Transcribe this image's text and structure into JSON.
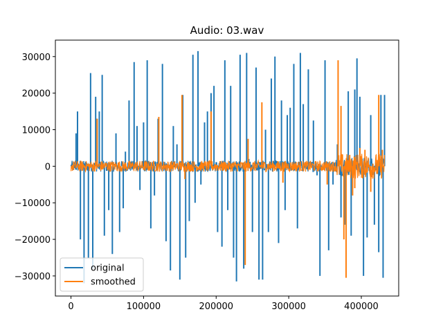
{
  "chart_data": {
    "type": "line",
    "title": "Audio: 03.wav",
    "xlabel": "",
    "ylabel": "",
    "xlim": [
      -21500,
      451500
    ],
    "ylim": [
      -35500,
      34500
    ],
    "x_ticks": [
      0,
      100000,
      200000,
      300000,
      400000
    ],
    "x_tick_labels": [
      "0",
      "100000",
      "200000",
      "300000",
      "400000"
    ],
    "y_ticks": [
      -30000,
      -20000,
      -10000,
      0,
      10000,
      20000,
      30000
    ],
    "y_tick_labels": [
      "−30000",
      "−20000",
      "−10000",
      "0",
      "10000",
      "20000",
      "30000"
    ],
    "grid": false,
    "legend_position": "lower-left",
    "series": [
      {
        "name": "original",
        "color": "#1f77b4",
        "x_start": 0,
        "x_end": 432000,
        "baseline_amplitude": 1500,
        "spikes": [
          [
            7000,
            9000
          ],
          [
            9000,
            15000
          ],
          [
            13000,
            -20000
          ],
          [
            18000,
            -32000
          ],
          [
            24000,
            -25000
          ],
          [
            27000,
            25500
          ],
          [
            30000,
            -28000
          ],
          [
            34000,
            19000
          ],
          [
            36000,
            13000
          ],
          [
            39000,
            15000
          ],
          [
            43000,
            25000
          ],
          [
            46000,
            -19000
          ],
          [
            52000,
            -12000
          ],
          [
            57000,
            -24000
          ],
          [
            62000,
            9000
          ],
          [
            67000,
            -18000
          ],
          [
            72000,
            -11500
          ],
          [
            75000,
            4000
          ],
          [
            80000,
            18000
          ],
          [
            87000,
            28500
          ],
          [
            91000,
            11000
          ],
          [
            95000,
            -6500
          ],
          [
            100000,
            12000
          ],
          [
            105000,
            29000
          ],
          [
            110000,
            -17000
          ],
          [
            115000,
            -8000
          ],
          [
            120000,
            13000
          ],
          [
            126000,
            28000
          ],
          [
            131000,
            -20500
          ],
          [
            137000,
            -28500
          ],
          [
            141000,
            11000
          ],
          [
            146000,
            6000
          ],
          [
            150000,
            -31000
          ],
          [
            154000,
            19500
          ],
          [
            158000,
            -25000
          ],
          [
            163000,
            -15000
          ],
          [
            168000,
            30500
          ],
          [
            171000,
            -10000
          ],
          [
            175000,
            31500
          ],
          [
            179000,
            -5000
          ],
          [
            184000,
            12000
          ],
          [
            188000,
            15000
          ],
          [
            193000,
            20000
          ],
          [
            197000,
            22000
          ],
          [
            202000,
            -18000
          ],
          [
            208000,
            -22000
          ],
          [
            212000,
            29000
          ],
          [
            216000,
            -12000
          ],
          [
            220000,
            22000
          ],
          [
            224000,
            -25000
          ],
          [
            228000,
            -31500
          ],
          [
            233000,
            30500
          ],
          [
            238000,
            -28000
          ],
          [
            242000,
            31000
          ],
          [
            245000,
            2000
          ],
          [
            250000,
            -18000
          ],
          [
            255000,
            27000
          ],
          [
            259000,
            -31000
          ],
          [
            264000,
            -31000
          ],
          [
            268000,
            10000
          ],
          [
            272000,
            -18000
          ],
          [
            276000,
            24000
          ],
          [
            281000,
            30000
          ],
          [
            286000,
            -21000
          ],
          [
            290000,
            18000
          ],
          [
            295000,
            -12000
          ],
          [
            298000,
            14000
          ],
          [
            302000,
            16000
          ],
          [
            307000,
            28000
          ],
          [
            312000,
            -17000
          ],
          [
            316000,
            31000
          ],
          [
            320000,
            17000
          ],
          [
            327000,
            26500
          ],
          [
            334000,
            12500
          ],
          [
            339000,
            -2500
          ],
          [
            343000,
            -30000
          ],
          [
            350000,
            29000
          ],
          [
            355000,
            -23000
          ],
          [
            361000,
            -5000
          ],
          [
            367000,
            6000
          ],
          [
            372000,
            -14000
          ],
          [
            377000,
            -16000
          ],
          [
            382000,
            20500
          ],
          [
            386000,
            -19000
          ],
          [
            391000,
            21000
          ],
          [
            394000,
            29500
          ],
          [
            398000,
            19000
          ],
          [
            403000,
            -30000
          ],
          [
            408000,
            -19500
          ],
          [
            413000,
            14000
          ],
          [
            418000,
            -16000
          ],
          [
            424000,
            -23500
          ],
          [
            427000,
            19500
          ],
          [
            430000,
            -30500
          ],
          [
            432000,
            19500
          ]
        ]
      },
      {
        "name": "smoothed",
        "color": "#ff7f0e",
        "x_start": 0,
        "x_end": 432000,
        "baseline_amplitude": 1500,
        "spikes": [
          [
            36000,
            13000
          ],
          [
            121000,
            13500
          ],
          [
            153000,
            19500
          ],
          [
            157000,
            -3500
          ],
          [
            193000,
            15000
          ],
          [
            240000,
            -27000
          ],
          [
            244000,
            7500
          ],
          [
            263000,
            17500
          ],
          [
            292000,
            -4500
          ],
          [
            353000,
            -5000
          ],
          [
            368000,
            29000
          ],
          [
            372000,
            16500
          ],
          [
            376000,
            -20000
          ],
          [
            379000,
            -30500
          ],
          [
            388000,
            -8000
          ],
          [
            391000,
            -6000
          ],
          [
            398000,
            5000
          ],
          [
            405000,
            4500
          ],
          [
            413000,
            -7000
          ],
          [
            424000,
            19500
          ],
          [
            429000,
            4500
          ]
        ]
      }
    ]
  }
}
